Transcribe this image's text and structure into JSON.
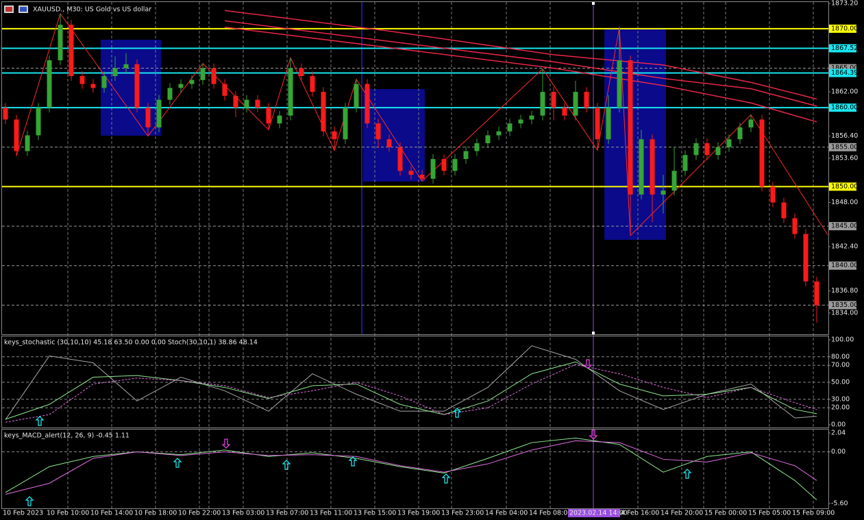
{
  "chart_data": [
    {
      "type": "candlestick",
      "title": "XAUUSD., M30:  US Gold vs US dollar",
      "up_color": "#35a535",
      "down_color": "#ff1a1a",
      "open": [
        1860,
        1858.5,
        1854.5,
        1856.5,
        1860,
        1866,
        1870.5,
        1864,
        1863,
        1862.5,
        1864,
        1865,
        1865.5,
        1860,
        1857.5,
        1861,
        1862.5,
        1863,
        1863.5,
        1865,
        1863,
        1861.5,
        1860,
        1861,
        1860,
        1858,
        1859,
        1865,
        1864,
        1862,
        1857,
        1856,
        1860,
        1863,
        1858,
        1856,
        1855,
        1852,
        1851.5,
        1851,
        1853.5,
        1852,
        1853.5,
        1854.5,
        1855.5,
        1856.5,
        1857,
        1858,
        1858.5,
        1859,
        1862,
        1860,
        1859,
        1862,
        1860,
        1856,
        1860,
        1866,
        1849,
        1856,
        1849,
        1849.5,
        1852,
        1854,
        1855.5,
        1854,
        1855,
        1856,
        1857.5,
        1858.5,
        1850,
        1848,
        1846,
        1844,
        1838
      ],
      "high": [
        1860.6,
        1859.1,
        1857.1,
        1860.6,
        1866.6,
        1871.9,
        1871.1,
        1864.6,
        1863.6,
        1864.6,
        1866.5,
        1866.9,
        1866.1,
        1860.6,
        1861.6,
        1863.1,
        1863.6,
        1864.1,
        1865.6,
        1865.6,
        1863.6,
        1862.1,
        1861.6,
        1861.6,
        1860.6,
        1859.6,
        1866.3,
        1865.6,
        1864.6,
        1862.6,
        1857.6,
        1860.6,
        1863.6,
        1863.6,
        1858.6,
        1856.6,
        1855.6,
        1852.6,
        1852.1,
        1854.1,
        1854.1,
        1854.1,
        1855.1,
        1856.1,
        1857.1,
        1857.6,
        1858.6,
        1859.1,
        1859.6,
        1864.9,
        1862.6,
        1860.6,
        1863.4,
        1862.6,
        1860.6,
        1861.6,
        1870.2,
        1866.6,
        1857.2,
        1856.6,
        1851.5,
        1855,
        1854.6,
        1856.1,
        1856.1,
        1855.6,
        1856.6,
        1858.1,
        1859.1,
        1859.1,
        1850.6,
        1848.6,
        1846.6,
        1844.6,
        1838.6
      ],
      "low": [
        1857.9,
        1853.9,
        1853.9,
        1855.9,
        1859.4,
        1865.4,
        1863.4,
        1862.4,
        1861.9,
        1861.9,
        1863.4,
        1864.4,
        1859.4,
        1856.4,
        1856.9,
        1860.4,
        1861.9,
        1862.4,
        1862.9,
        1862.4,
        1860.9,
        1858.8,
        1859.4,
        1859.4,
        1857.2,
        1857.4,
        1858.4,
        1863.4,
        1861.4,
        1856.4,
        1854.6,
        1855.4,
        1859.4,
        1857.4,
        1854.9,
        1854.4,
        1851.4,
        1850.9,
        1850.7,
        1850.4,
        1851.4,
        1851.4,
        1852.9,
        1853.9,
        1854.9,
        1855.9,
        1856.4,
        1857.4,
        1857.9,
        1858.4,
        1858.4,
        1858.4,
        1858.4,
        1859.4,
        1854.6,
        1855.4,
        1859.4,
        1843.8,
        1848.4,
        1845.5,
        1846.6,
        1848.9,
        1851.4,
        1853.4,
        1853.4,
        1853.4,
        1854.4,
        1855.4,
        1856.9,
        1849.4,
        1847.4,
        1845.4,
        1843.4,
        1837.4,
        1832.8
      ],
      "close": [
        1858.5,
        1854.5,
        1856.5,
        1860,
        1866,
        1870.5,
        1864,
        1863,
        1862.5,
        1864,
        1865,
        1865.5,
        1860,
        1857.5,
        1861,
        1862.5,
        1863,
        1863.5,
        1865,
        1863,
        1861.5,
        1860,
        1861,
        1860,
        1858,
        1859,
        1865,
        1864,
        1862,
        1857,
        1856,
        1860,
        1863,
        1858,
        1856,
        1855,
        1852,
        1851.5,
        1851,
        1853.5,
        1852,
        1853.5,
        1854.5,
        1855.5,
        1856.5,
        1857,
        1858,
        1858.5,
        1859,
        1862,
        1860,
        1859,
        1862,
        1860,
        1856,
        1860,
        1866,
        1849,
        1856,
        1849,
        1849.5,
        1852,
        1854,
        1855.5,
        1854,
        1855,
        1856,
        1857.5,
        1858.5,
        1850,
        1848,
        1846,
        1844,
        1838,
        1835
      ],
      "ylim": [
        1831.3,
        1873.2
      ],
      "yticks": [
        {
          "value": 1873.2,
          "label": "1873.20"
        },
        {
          "value": 1862,
          "label": "1862.00"
        },
        {
          "value": 1856.4,
          "label": "1856.40"
        },
        {
          "value": 1853.6,
          "label": "1853.60"
        },
        {
          "value": 1848,
          "label": "1848.00"
        },
        {
          "value": 1842.4,
          "label": "1842.40"
        },
        {
          "value": 1836.8,
          "label": "1836.80"
        },
        {
          "value": 1834,
          "label": "1834.00"
        }
      ],
      "levels": [
        {
          "value": 1870,
          "label": "1870.00",
          "color": "#ffff00"
        },
        {
          "value": 1867.52,
          "label": "1867.52",
          "color": "#19e6f0"
        },
        {
          "value": 1865,
          "label": "1865.00",
          "color": "#9a9a9a",
          "dashed": true
        },
        {
          "value": 1864.39,
          "label": "1864.39",
          "color": "#19e6f0"
        },
        {
          "value": 1860,
          "label": "1860.00",
          "color": "#19e6f0"
        },
        {
          "value": 1855,
          "label": "1855.00",
          "color": "#9a9a9a",
          "dashed": true
        },
        {
          "value": 1850,
          "label": "1850.00",
          "color": "#ffff00"
        },
        {
          "value": 1845,
          "label": "1845.00",
          "color": "#9a9a9a",
          "dashed": true
        },
        {
          "value": 1840,
          "label": "1840.00",
          "color": "#9a9a9a",
          "dashed": true
        },
        {
          "value": 1835,
          "label": "1835.00",
          "color": "#9a9a9a",
          "dashed": true
        }
      ],
      "overlays": [
        {
          "color": "#e8284a",
          "x": [
            20,
            35,
            50,
            60,
            68,
            74
          ],
          "values": [
            1872.3,
            1869.7,
            1866.7,
            1865.4,
            1863.2,
            1861.1
          ]
        },
        {
          "color": "#e8284a",
          "x": [
            20,
            35,
            50,
            60,
            68,
            74
          ],
          "values": [
            1871.0,
            1868.4,
            1865.8,
            1863.7,
            1862.4,
            1860.2
          ]
        },
        {
          "color": "#e8284a",
          "x": [
            20,
            35,
            50,
            60,
            68,
            74
          ],
          "values": [
            1870.2,
            1867.6,
            1865.0,
            1862.8,
            1860.6,
            1858.2
          ]
        },
        {
          "color": "#ff2a2a",
          "x": [
            1,
            5,
            13,
            18,
            24,
            26,
            30,
            32,
            38,
            49,
            54,
            56,
            57,
            68,
            75
          ],
          "values": [
            1853.9,
            1871.9,
            1856.4,
            1865.6,
            1857.2,
            1866.3,
            1854.6,
            1863.6,
            1850.7,
            1864.9,
            1854.6,
            1870.2,
            1843.8,
            1859.1,
            1843.9
          ]
        }
      ],
      "x_labels": [
        "10 Feb 2023",
        "10 Feb 10:00",
        "10 Feb 14:00",
        "10 Feb 18:00",
        "10 Feb 22:00",
        "13 Feb 03:00",
        "13 Feb 07:00",
        "13 Feb 11:00",
        "13 Feb 15:00",
        "13 Feb 19:00",
        "13 Feb 23:00",
        "14 Feb 04:00",
        "14 Feb 08:00",
        null,
        "14 Feb 16:00",
        "14 Feb 20:00",
        "15 Feb 00:00",
        "15 Feb 05:00",
        "15 Feb 09:00"
      ],
      "cursor_label": "2023.02.14 14:00"
    },
    {
      "type": "line",
      "title": "keys_stochastic (30,10,10) 45.18 63.50 0.00 0.00 Stoch(30,10,1) 38.86 48.14",
      "x": [
        0,
        4,
        8,
        12,
        16,
        20,
        24,
        28,
        32,
        36,
        40,
        44,
        48,
        52,
        56,
        60,
        64,
        68,
        72,
        74
      ],
      "series": [
        {
          "color": "#a8a8a8",
          "values": [
            6,
            81,
            73,
            28,
            56,
            40,
            16,
            60,
            36,
            16,
            16,
            44,
            93,
            77,
            40,
            18,
            36,
            48,
            8,
            10
          ]
        },
        {
          "color": "#90e890",
          "values": [
            6.5,
            24,
            56,
            58,
            52,
            44,
            31,
            46,
            48,
            24,
            12,
            28,
            60,
            74,
            48,
            34,
            36,
            44,
            18,
            13
          ]
        },
        {
          "color": "#e070e0",
          "dashed": true,
          "values": [
            3,
            12,
            48,
            55,
            52,
            46,
            32,
            40,
            50,
            34,
            12,
            20,
            48,
            71,
            60,
            44,
            32,
            44,
            26,
            18
          ]
        }
      ],
      "ylim": [
        -3.2,
        103.2
      ],
      "yticks": [
        {
          "value": 100,
          "label": "100.00"
        },
        {
          "value": 80,
          "label": "80.00"
        },
        {
          "value": 70,
          "label": "70.00"
        },
        {
          "value": 50,
          "label": "50.00"
        },
        {
          "value": 30,
          "label": "30.00"
        },
        {
          "value": 20,
          "label": "20.00"
        },
        {
          "value": 0,
          "label": "0.00"
        }
      ]
    },
    {
      "type": "line",
      "title": "keys_MACD_alert(12, 26, 9) -0.45 1.11",
      "x": [
        0,
        4,
        8,
        12,
        16,
        20,
        24,
        28,
        32,
        36,
        40,
        44,
        48,
        52,
        56,
        60,
        64,
        68,
        72,
        74
      ],
      "series": [
        {
          "color": "#90e890",
          "values": [
            -4.4,
            -1.6,
            -0.5,
            0,
            -0.3,
            0.2,
            -0.5,
            -0.1,
            -0.7,
            -1.6,
            -2.3,
            -0.7,
            1,
            1.5,
            0.8,
            -2.2,
            -0.5,
            0,
            -3.1,
            -5.2
          ]
        },
        {
          "color": "#e070e0",
          "values": [
            -4.6,
            -3.4,
            -0.7,
            0,
            -0.4,
            0,
            -0.4,
            -0.3,
            -0.5,
            -1.5,
            -2.2,
            -1.3,
            0.2,
            1.2,
            1,
            -0.8,
            -1.1,
            -0.1,
            -1.5,
            -3.1
          ]
        }
      ],
      "ylim": [
        -6.12,
        2.34
      ],
      "yticks": [
        {
          "value": 2.04,
          "label": "2.04"
        },
        {
          "value": 0,
          "label": "0.00"
        },
        {
          "value": -5.6,
          "label": "-5.60"
        }
      ]
    }
  ]
}
